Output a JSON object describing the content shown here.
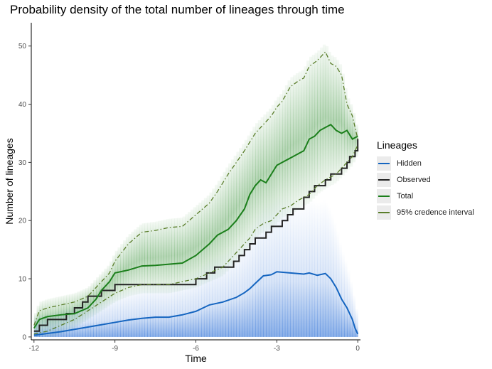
{
  "title": "Probability density of the total number of lineages through time",
  "chart_data": {
    "type": "line",
    "title": "Probability density of the total number of lineages through time",
    "xlabel": "Time",
    "ylabel": "Number of lineages",
    "xlim": [
      -12.1,
      0.1
    ],
    "ylim": [
      -0.5,
      54
    ],
    "xticks": [
      -12,
      -9,
      -6,
      -3,
      0
    ],
    "xtick_labels": [
      "-12",
      "-9",
      "-6",
      "-3",
      "0"
    ],
    "yticks": [
      0,
      10,
      20,
      30,
      40,
      50
    ],
    "ytick_labels": [
      "0",
      "10",
      "20",
      "30",
      "40",
      "50"
    ],
    "grid": false,
    "legend": {
      "title": "Lineages",
      "placement": "right",
      "entries": [
        "Hidden",
        "Observed",
        "Total",
        "95% credence interval"
      ]
    },
    "series": [
      {
        "name": "Hidden",
        "color": "#1565c0",
        "style": "solid",
        "x": [
          -12,
          -11.5,
          -11,
          -10.5,
          -10,
          -9.5,
          -9,
          -8.5,
          -8,
          -7.5,
          -7,
          -6.5,
          -6,
          -5.5,
          -5,
          -4.5,
          -4.2,
          -4,
          -3.8,
          -3.5,
          -3.2,
          -3,
          -2.5,
          -2,
          -1.8,
          -1.5,
          -1.2,
          -1,
          -0.8,
          -0.6,
          -0.4,
          -0.2,
          -0.1,
          0
        ],
        "y": [
          0.3,
          0.6,
          0.9,
          1.3,
          1.7,
          2.1,
          2.5,
          2.9,
          3.2,
          3.4,
          3.4,
          3.8,
          4.4,
          5.5,
          6,
          6.8,
          7.6,
          8.3,
          9.2,
          10.5,
          10.7,
          11.2,
          11,
          10.8,
          11,
          10.6,
          10.9,
          10,
          8.5,
          6.5,
          5,
          3,
          1.5,
          0.5
        ]
      },
      {
        "name": "Observed",
        "color": "#222222",
        "style": "step",
        "x": [
          -12,
          -11.8,
          -11.5,
          -11,
          -10.8,
          -10.5,
          -10.2,
          -10,
          -9.7,
          -9.5,
          -9.2,
          -9,
          -8.8,
          -8.5,
          -8,
          -7.5,
          -7,
          -6.5,
          -6,
          -5.6,
          -5.3,
          -5.1,
          -4.8,
          -4.6,
          -4.4,
          -4.2,
          -4,
          -3.8,
          -3.6,
          -3.4,
          -3.2,
          -3,
          -2.8,
          -2.6,
          -2.4,
          -2.2,
          -2,
          -1.8,
          -1.6,
          -1.4,
          -1.2,
          -1,
          -0.8,
          -0.6,
          -0.4,
          -0.3,
          -0.2,
          -0.1,
          0
        ],
        "y": [
          1,
          2,
          3,
          3,
          4,
          5,
          6,
          7,
          7,
          8,
          8,
          9,
          9,
          9,
          9,
          9,
          9,
          9,
          10,
          11,
          12,
          12,
          12,
          13,
          14,
          15,
          16,
          17,
          17,
          18,
          19,
          19,
          20,
          21,
          22,
          22,
          24,
          25,
          26,
          26,
          27,
          28,
          28,
          29,
          30,
          31,
          31,
          32,
          34
        ]
      },
      {
        "name": "Total",
        "color": "#1b7f1b",
        "style": "solid",
        "x": [
          -12,
          -11.8,
          -11.5,
          -11,
          -10.5,
          -10,
          -9.7,
          -9.5,
          -9.2,
          -9,
          -8.5,
          -8,
          -7.5,
          -7,
          -6.5,
          -6,
          -5.5,
          -5.2,
          -5,
          -4.8,
          -4.5,
          -4.2,
          -4,
          -3.8,
          -3.6,
          -3.4,
          -3.2,
          -3,
          -2.8,
          -2.6,
          -2.4,
          -2.2,
          -2,
          -1.8,
          -1.6,
          -1.4,
          -1.2,
          -1,
          -0.8,
          -0.6,
          -0.4,
          -0.2,
          0
        ],
        "y": [
          1.5,
          3,
          3.5,
          3.8,
          4,
          5,
          6.5,
          8,
          9.5,
          11,
          11.5,
          12.2,
          12.3,
          12.5,
          12.7,
          14,
          16,
          17.5,
          18,
          18.5,
          20,
          22,
          24.5,
          26,
          27,
          26.5,
          28,
          29.5,
          30,
          30.5,
          31,
          31.5,
          32,
          34,
          34.5,
          35.5,
          36,
          36.5,
          35.5,
          35,
          35.5,
          34,
          34.5
        ]
      },
      {
        "name": "95% credence interval",
        "color": "#5a7d2a",
        "style": "dashdot",
        "x": [
          -12,
          -11.8,
          -11.5,
          -11,
          -10.5,
          -10,
          -9.8,
          -9.5,
          -9.2,
          -9,
          -8.5,
          -8,
          -7.5,
          -7,
          -6.5,
          -6,
          -5.5,
          -5.2,
          -5,
          -4.8,
          -4.5,
          -4.2,
          -4,
          -3.8,
          -3.5,
          -3.2,
          -3,
          -2.8,
          -2.5,
          -2.2,
          -2,
          -1.8,
          -1.5,
          -1.2,
          -1,
          -0.8,
          -0.6,
          -0.4,
          -0.2,
          0
        ],
        "y": [
          2,
          4.5,
          5,
          5.5,
          6,
          7,
          8,
          9.5,
          11,
          13,
          16,
          18,
          18.3,
          18.8,
          19,
          21,
          23,
          25,
          26.5,
          28,
          30,
          32,
          33.5,
          35,
          36.5,
          38,
          39.5,
          40.5,
          43,
          44,
          44.5,
          46.5,
          47.5,
          49,
          47,
          46.5,
          45,
          40,
          38,
          34
        ]
      },
      {
        "name": "95% credence interval",
        "color": "#5a7d2a",
        "style": "dashdot",
        "x": [
          -12,
          -11.5,
          -11,
          -10.5,
          -10,
          -9.5,
          -9,
          -8.5,
          -8,
          -7.5,
          -7,
          -6.5,
          -6,
          -5.5,
          -5,
          -4.8,
          -4.5,
          -4.2,
          -4,
          -3.8,
          -3.5,
          -3.2,
          -3,
          -2.8,
          -2.5,
          -2.2,
          -2,
          -1.8,
          -1.5,
          -1.2,
          -1,
          -0.8,
          -0.6,
          -0.4,
          -0.2,
          0
        ],
        "y": [
          0.5,
          1,
          2,
          3,
          4.5,
          6,
          7.5,
          8.5,
          9,
          9,
          9,
          9.5,
          10,
          11,
          12,
          13,
          14.5,
          16,
          17,
          18.5,
          19.5,
          20,
          21,
          22,
          22.5,
          23.5,
          24,
          24.5,
          26,
          27,
          27.5,
          28,
          29,
          30,
          31,
          33
        ]
      }
    ]
  }
}
